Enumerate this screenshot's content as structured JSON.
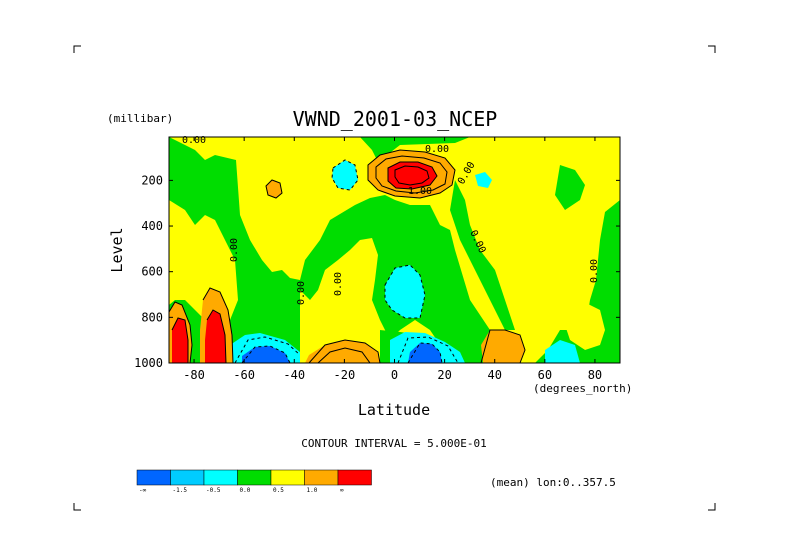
{
  "chart_data": {
    "type": "heatmap",
    "title": "VWND_2001-03_NCEP",
    "xlabel": "Latitude",
    "x_units": "(degrees_north)",
    "ylabel": "Level",
    "y_units": "(millibar)",
    "xlim": [
      -90,
      90
    ],
    "ylim": [
      1000,
      10
    ],
    "x_ticks": [
      "-80",
      "-60",
      "-40",
      "-20",
      "0",
      "20",
      "40",
      "60",
      "80"
    ],
    "x_tick_values": [
      -80,
      -60,
      -40,
      -20,
      0,
      20,
      40,
      60,
      80
    ],
    "y_ticks": [
      "200",
      "400",
      "600",
      "800",
      "1000"
    ],
    "y_tick_values": [
      200,
      400,
      600,
      800,
      1000
    ],
    "contour_interval_text": "CONTOUR INTERVAL = 5.000E-01",
    "mean_text": "(mean) lon:0..357.5",
    "contour_labels": [
      "0.00",
      "0.00",
      "0.00",
      "0.00",
      "0.00",
      "1.00",
      "0.00",
      "0.00",
      "0.00"
    ],
    "colorbar": {
      "colors": [
        "#0066ff",
        "#00ccff",
        "#00ffff",
        "#00dd00",
        "#ffff00",
        "#ffaa00",
        "#ff0000"
      ],
      "labels": [
        "-∞",
        "-1.5",
        "-0.5",
        "0.0",
        "0.5",
        "1.0",
        "∞"
      ]
    }
  }
}
